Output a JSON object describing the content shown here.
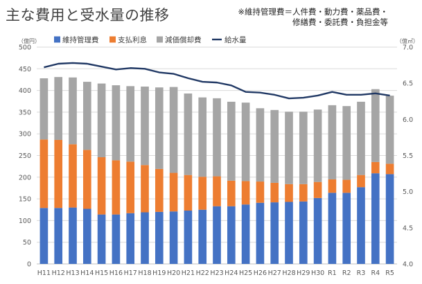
{
  "title": "主な費用と受水量の推移",
  "note_lines": [
    "※維持管理費＝人件費・動力費・薬品費・",
    "修繕費・委託費・負担金等"
  ],
  "colors": {
    "maintenance": "#4472C4",
    "interest": "#ED7D31",
    "depreciation": "#A5A5A5",
    "water": "#203864",
    "grid": "#D9D9D9",
    "axis": "#BFBFBF"
  },
  "chart_data": {
    "type": "bar",
    "stacked": true,
    "categories": [
      "H11",
      "H12",
      "H13",
      "H14",
      "H15",
      "H16",
      "H17",
      "H18",
      "H19",
      "H20",
      "H21",
      "H22",
      "H23",
      "H24",
      "H25",
      "H26",
      "H27",
      "H28",
      "H29",
      "H30",
      "R1",
      "R2",
      "R3",
      "R4",
      "R5"
    ],
    "series": [
      {
        "name": "維持管理費",
        "axis": "left",
        "color": "#4472C4",
        "values": [
          129,
          129,
          130,
          127,
          114,
          114,
          117,
          119,
          120,
          121,
          123,
          125,
          133,
          133,
          137,
          141,
          142,
          143,
          144,
          152,
          164,
          164,
          177,
          209,
          207
        ]
      },
      {
        "name": "支払利息",
        "axis": "left",
        "color": "#ED7D31",
        "values": [
          158,
          157,
          146,
          136,
          132,
          125,
          119,
          109,
          99,
          89,
          82,
          76,
          69,
          59,
          54,
          49,
          45,
          41,
          40,
          37,
          31,
          30,
          28,
          26,
          24
        ]
      },
      {
        "name": "減価償却費",
        "axis": "left",
        "color": "#A5A5A5",
        "values": [
          141,
          145,
          154,
          157,
          170,
          173,
          174,
          181,
          188,
          198,
          188,
          183,
          180,
          182,
          181,
          169,
          168,
          167,
          167,
          167,
          171,
          170,
          169,
          168,
          157
        ]
      },
      {
        "name": "給水量",
        "type": "line",
        "axis": "right",
        "color": "#203864",
        "values": [
          6.72,
          6.77,
          6.78,
          6.77,
          6.73,
          6.69,
          6.71,
          6.7,
          6.65,
          6.63,
          6.57,
          6.52,
          6.51,
          6.47,
          6.38,
          6.37,
          6.34,
          6.29,
          6.3,
          6.33,
          6.38,
          6.34,
          6.34,
          6.36,
          6.33
        ]
      }
    ],
    "y_left": {
      "unit": "（億円）",
      "ylim": [
        0,
        500
      ],
      "ticks": [
        0,
        50,
        100,
        150,
        200,
        250,
        300,
        350,
        400,
        450,
        500
      ]
    },
    "y_right": {
      "unit": "（億㎥）",
      "ylim": [
        4.0,
        7.0
      ],
      "ticks": [
        "4.0",
        "4.5",
        "5.0",
        "5.5",
        "6.0",
        "6.5",
        "7.0"
      ]
    },
    "legend_position": "top",
    "grid": true
  }
}
